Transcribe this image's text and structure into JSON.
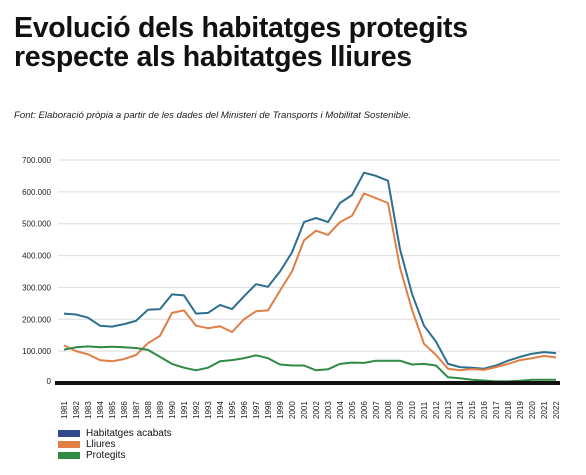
{
  "title": "Evolució dels habitatges protegits respecte als habitatges lliures",
  "source": "Font: Elaboració pròpia a partir de les dades del Ministeri de Transports i Mobilitat Sostenible.",
  "chart_data": {
    "type": "line",
    "x": [
      "1981",
      "1982",
      "1983",
      "1984",
      "1985",
      "1986",
      "1987",
      "1988",
      "1989",
      "1990",
      "1991",
      "1992",
      "1993",
      "1994",
      "1995",
      "1996",
      "1997",
      "1998",
      "1999",
      "2000",
      "2001",
      "2002",
      "2003",
      "2004",
      "2005",
      "2006",
      "2007",
      "2008",
      "2009",
      "2010",
      "2011",
      "2012",
      "2013",
      "2014",
      "2015",
      "2016",
      "2017",
      "2018",
      "2019",
      "2020",
      "2021",
      "2022"
    ],
    "ylim": [
      0,
      700000
    ],
    "yticks": [
      0,
      100000,
      200000,
      300000,
      400000,
      500000,
      600000,
      700000
    ],
    "ytick_labels": [
      "0",
      "100.000",
      "200.000",
      "300.000",
      "400.000",
      "500.000",
      "600.000",
      "700.000"
    ],
    "grid": "horizontal",
    "legend_position": "bottom-left",
    "series": [
      {
        "name": "Habitatges acabats",
        "color": "#2e6e8e",
        "values": [
          218000,
          215000,
          205000,
          180000,
          177000,
          185000,
          195000,
          230000,
          232000,
          278000,
          275000,
          218000,
          220000,
          245000,
          232000,
          272000,
          310000,
          302000,
          350000,
          410000,
          505000,
          518000,
          505000,
          565000,
          590000,
          660000,
          650000,
          635000,
          420000,
          280000,
          180000,
          130000,
          60000,
          50000,
          48000,
          45000,
          55000,
          70000,
          82000,
          92000,
          97000,
          94000
        ]
      },
      {
        "name": "Lliures",
        "color": "#e07f45",
        "values": [
          118000,
          100000,
          90000,
          72000,
          68000,
          75000,
          88000,
          125000,
          148000,
          220000,
          228000,
          180000,
          172000,
          178000,
          160000,
          200000,
          225000,
          228000,
          290000,
          350000,
          448000,
          478000,
          465000,
          505000,
          525000,
          595000,
          580000,
          565000,
          362000,
          230000,
          123000,
          88000,
          45000,
          40000,
          44000,
          41000,
          50000,
          60000,
          72000,
          78000,
          85000,
          80000
        ]
      },
      {
        "name": "Protegits",
        "color": "#2f8a43",
        "values": [
          105000,
          112000,
          115000,
          112000,
          114000,
          112000,
          110000,
          104000,
          82000,
          60000,
          48000,
          40000,
          48000,
          68000,
          72000,
          78000,
          87000,
          78000,
          58000,
          55000,
          55000,
          40000,
          43000,
          60000,
          64000,
          63000,
          70000,
          70000,
          70000,
          58000,
          60000,
          55000,
          18000,
          15000,
          10000,
          8000,
          5000,
          5000,
          7000,
          10000,
          10000,
          10000
        ]
      }
    ]
  }
}
